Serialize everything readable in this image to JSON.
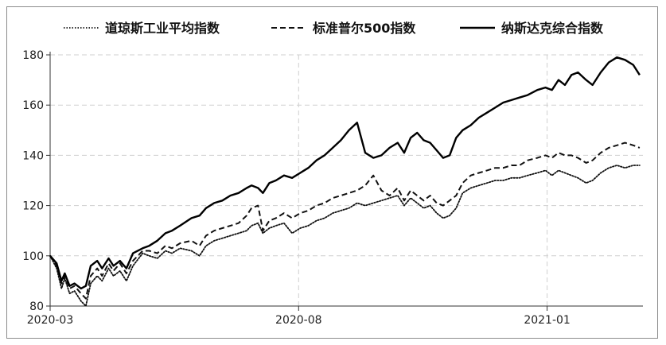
{
  "chart_data": {
    "type": "line",
    "title": "",
    "xlabel": "",
    "ylabel": "",
    "ylim": [
      80,
      180
    ],
    "yticks": [
      80,
      100,
      120,
      140,
      160,
      180
    ],
    "xlim": [
      "2020-03-01",
      "2021-03-01"
    ],
    "xticks": [
      {
        "date": "2020-03-01",
        "label": "2020-03"
      },
      {
        "date": "2020-08-01",
        "label": "2020-08"
      },
      {
        "date": "2021-01-01",
        "label": "2021-01"
      }
    ],
    "grid": true,
    "legend_position": "top",
    "series": [
      {
        "name": "道琼斯工业平均指数",
        "style": "dotted",
        "color": "#111111",
        "points": [
          [
            "2020-03-01",
            100
          ],
          [
            "2020-03-05",
            95
          ],
          [
            "2020-03-08",
            87
          ],
          [
            "2020-03-10",
            91
          ],
          [
            "2020-03-13",
            85
          ],
          [
            "2020-03-16",
            86
          ],
          [
            "2020-03-20",
            82
          ],
          [
            "2020-03-23",
            80
          ],
          [
            "2020-03-26",
            89
          ],
          [
            "2020-03-30",
            92
          ],
          [
            "2020-04-02",
            90
          ],
          [
            "2020-04-06",
            95
          ],
          [
            "2020-04-09",
            92
          ],
          [
            "2020-04-13",
            94
          ],
          [
            "2020-04-17",
            90
          ],
          [
            "2020-04-21",
            96
          ],
          [
            "2020-04-27",
            101
          ],
          [
            "2020-05-01",
            100
          ],
          [
            "2020-05-06",
            99
          ],
          [
            "2020-05-11",
            102
          ],
          [
            "2020-05-15",
            101
          ],
          [
            "2020-05-20",
            103
          ],
          [
            "2020-05-27",
            102
          ],
          [
            "2020-06-01",
            100
          ],
          [
            "2020-06-05",
            104
          ],
          [
            "2020-06-10",
            106
          ],
          [
            "2020-06-15",
            107
          ],
          [
            "2020-06-20",
            108
          ],
          [
            "2020-06-25",
            109
          ],
          [
            "2020-06-30",
            110
          ],
          [
            "2020-07-03",
            112
          ],
          [
            "2020-07-07",
            113
          ],
          [
            "2020-07-10",
            109
          ],
          [
            "2020-07-14",
            111
          ],
          [
            "2020-07-18",
            112
          ],
          [
            "2020-07-23",
            113
          ],
          [
            "2020-07-28",
            109
          ],
          [
            "2020-08-02",
            111
          ],
          [
            "2020-08-07",
            112
          ],
          [
            "2020-08-12",
            114
          ],
          [
            "2020-08-17",
            115
          ],
          [
            "2020-08-22",
            117
          ],
          [
            "2020-08-27",
            118
          ],
          [
            "2020-09-01",
            119
          ],
          [
            "2020-09-06",
            121
          ],
          [
            "2020-09-11",
            120
          ],
          [
            "2020-09-16",
            121
          ],
          [
            "2020-09-21",
            122
          ],
          [
            "2020-09-26",
            123
          ],
          [
            "2020-10-01",
            124
          ],
          [
            "2020-10-05",
            120
          ],
          [
            "2020-10-09",
            123
          ],
          [
            "2020-10-13",
            121
          ],
          [
            "2020-10-17",
            119
          ],
          [
            "2020-10-21",
            120
          ],
          [
            "2020-10-25",
            117
          ],
          [
            "2020-10-29",
            115
          ],
          [
            "2020-11-02",
            116
          ],
          [
            "2020-11-06",
            119
          ],
          [
            "2020-11-10",
            125
          ],
          [
            "2020-11-15",
            127
          ],
          [
            "2020-11-20",
            128
          ],
          [
            "2020-11-25",
            129
          ],
          [
            "2020-11-30",
            130
          ],
          [
            "2020-12-05",
            130
          ],
          [
            "2020-12-10",
            131
          ],
          [
            "2020-12-15",
            131
          ],
          [
            "2020-12-20",
            132
          ],
          [
            "2020-12-26",
            133
          ],
          [
            "2020-12-31",
            134
          ],
          [
            "2021-01-04",
            132
          ],
          [
            "2021-01-08",
            134
          ],
          [
            "2021-01-12",
            133
          ],
          [
            "2021-01-16",
            132
          ],
          [
            "2021-01-20",
            131
          ],
          [
            "2021-01-25",
            129
          ],
          [
            "2021-01-29",
            130
          ],
          [
            "2021-02-03",
            133
          ],
          [
            "2021-02-08",
            135
          ],
          [
            "2021-02-13",
            136
          ],
          [
            "2021-02-18",
            135
          ],
          [
            "2021-02-23",
            136
          ],
          [
            "2021-02-27",
            136
          ]
        ]
      },
      {
        "name": "标准普尔500指数",
        "style": "dashed",
        "color": "#111111",
        "points": [
          [
            "2020-03-01",
            100
          ],
          [
            "2020-03-05",
            96
          ],
          [
            "2020-03-08",
            89
          ],
          [
            "2020-03-10",
            92
          ],
          [
            "2020-03-13",
            87
          ],
          [
            "2020-03-16",
            88
          ],
          [
            "2020-03-20",
            85
          ],
          [
            "2020-03-23",
            83
          ],
          [
            "2020-03-26",
            92
          ],
          [
            "2020-03-30",
            95
          ],
          [
            "2020-04-02",
            92
          ],
          [
            "2020-04-06",
            97
          ],
          [
            "2020-04-09",
            94
          ],
          [
            "2020-04-13",
            97
          ],
          [
            "2020-04-17",
            93
          ],
          [
            "2020-04-21",
            98
          ],
          [
            "2020-04-27",
            102
          ],
          [
            "2020-05-01",
            102
          ],
          [
            "2020-05-06",
            101
          ],
          [
            "2020-05-11",
            104
          ],
          [
            "2020-05-15",
            103
          ],
          [
            "2020-05-20",
            105
          ],
          [
            "2020-05-27",
            106
          ],
          [
            "2020-06-01",
            104
          ],
          [
            "2020-06-05",
            108
          ],
          [
            "2020-06-10",
            110
          ],
          [
            "2020-06-15",
            111
          ],
          [
            "2020-06-20",
            112
          ],
          [
            "2020-06-25",
            113
          ],
          [
            "2020-06-30",
            116
          ],
          [
            "2020-07-03",
            119
          ],
          [
            "2020-07-07",
            120
          ],
          [
            "2020-07-10",
            110
          ],
          [
            "2020-07-14",
            114
          ],
          [
            "2020-07-18",
            115
          ],
          [
            "2020-07-23",
            117
          ],
          [
            "2020-07-28",
            115
          ],
          [
            "2020-08-02",
            117
          ],
          [
            "2020-08-07",
            118
          ],
          [
            "2020-08-12",
            120
          ],
          [
            "2020-08-17",
            121
          ],
          [
            "2020-08-22",
            123
          ],
          [
            "2020-08-27",
            124
          ],
          [
            "2020-09-01",
            125
          ],
          [
            "2020-09-06",
            126
          ],
          [
            "2020-09-11",
            128
          ],
          [
            "2020-09-16",
            132
          ],
          [
            "2020-09-21",
            126
          ],
          [
            "2020-09-26",
            124
          ],
          [
            "2020-10-01",
            127
          ],
          [
            "2020-10-05",
            122
          ],
          [
            "2020-10-09",
            126
          ],
          [
            "2020-10-13",
            124
          ],
          [
            "2020-10-17",
            122
          ],
          [
            "2020-10-21",
            124
          ],
          [
            "2020-10-25",
            121
          ],
          [
            "2020-10-29",
            120
          ],
          [
            "2020-11-02",
            122
          ],
          [
            "2020-11-06",
            124
          ],
          [
            "2020-11-10",
            129
          ],
          [
            "2020-11-15",
            132
          ],
          [
            "2020-11-20",
            133
          ],
          [
            "2020-11-25",
            134
          ],
          [
            "2020-11-30",
            135
          ],
          [
            "2020-12-05",
            135
          ],
          [
            "2020-12-10",
            136
          ],
          [
            "2020-12-15",
            136
          ],
          [
            "2020-12-20",
            138
          ],
          [
            "2020-12-26",
            139
          ],
          [
            "2020-12-31",
            140
          ],
          [
            "2021-01-04",
            139
          ],
          [
            "2021-01-08",
            141
          ],
          [
            "2021-01-12",
            140
          ],
          [
            "2021-01-16",
            140
          ],
          [
            "2021-01-20",
            139
          ],
          [
            "2021-01-25",
            137
          ],
          [
            "2021-01-29",
            138
          ],
          [
            "2021-02-03",
            141
          ],
          [
            "2021-02-08",
            143
          ],
          [
            "2021-02-13",
            144
          ],
          [
            "2021-02-18",
            145
          ],
          [
            "2021-02-23",
            144
          ],
          [
            "2021-02-27",
            143
          ]
        ]
      },
      {
        "name": "纳斯达克综合指数",
        "style": "solid",
        "color": "#000000",
        "points": [
          [
            "2020-03-01",
            100
          ],
          [
            "2020-03-05",
            97
          ],
          [
            "2020-03-08",
            90
          ],
          [
            "2020-03-10",
            93
          ],
          [
            "2020-03-13",
            88
          ],
          [
            "2020-03-16",
            89
          ],
          [
            "2020-03-20",
            87
          ],
          [
            "2020-03-23",
            88
          ],
          [
            "2020-03-26",
            96
          ],
          [
            "2020-03-30",
            98
          ],
          [
            "2020-04-02",
            95
          ],
          [
            "2020-04-06",
            99
          ],
          [
            "2020-04-09",
            96
          ],
          [
            "2020-04-13",
            98
          ],
          [
            "2020-04-17",
            95
          ],
          [
            "2020-04-21",
            101
          ],
          [
            "2020-04-27",
            103
          ],
          [
            "2020-05-01",
            104
          ],
          [
            "2020-05-06",
            106
          ],
          [
            "2020-05-11",
            109
          ],
          [
            "2020-05-15",
            110
          ],
          [
            "2020-05-20",
            112
          ],
          [
            "2020-05-27",
            115
          ],
          [
            "2020-06-01",
            116
          ],
          [
            "2020-06-05",
            119
          ],
          [
            "2020-06-10",
            121
          ],
          [
            "2020-06-15",
            122
          ],
          [
            "2020-06-20",
            124
          ],
          [
            "2020-06-25",
            125
          ],
          [
            "2020-06-30",
            127
          ],
          [
            "2020-07-03",
            128
          ],
          [
            "2020-07-07",
            127
          ],
          [
            "2020-07-10",
            125
          ],
          [
            "2020-07-14",
            129
          ],
          [
            "2020-07-18",
            130
          ],
          [
            "2020-07-23",
            132
          ],
          [
            "2020-07-28",
            131
          ],
          [
            "2020-08-02",
            133
          ],
          [
            "2020-08-07",
            135
          ],
          [
            "2020-08-12",
            138
          ],
          [
            "2020-08-17",
            140
          ],
          [
            "2020-08-22",
            143
          ],
          [
            "2020-08-27",
            146
          ],
          [
            "2020-09-01",
            150
          ],
          [
            "2020-09-06",
            153
          ],
          [
            "2020-09-11",
            141
          ],
          [
            "2020-09-16",
            139
          ],
          [
            "2020-09-21",
            140
          ],
          [
            "2020-09-26",
            143
          ],
          [
            "2020-10-01",
            145
          ],
          [
            "2020-10-05",
            141
          ],
          [
            "2020-10-09",
            147
          ],
          [
            "2020-10-13",
            149
          ],
          [
            "2020-10-17",
            146
          ],
          [
            "2020-10-21",
            145
          ],
          [
            "2020-10-25",
            142
          ],
          [
            "2020-10-29",
            139
          ],
          [
            "2020-11-02",
            140
          ],
          [
            "2020-11-06",
            147
          ],
          [
            "2020-11-10",
            150
          ],
          [
            "2020-11-15",
            152
          ],
          [
            "2020-11-20",
            155
          ],
          [
            "2020-11-25",
            157
          ],
          [
            "2020-11-30",
            159
          ],
          [
            "2020-12-05",
            161
          ],
          [
            "2020-12-10",
            162
          ],
          [
            "2020-12-15",
            163
          ],
          [
            "2020-12-20",
            164
          ],
          [
            "2020-12-26",
            166
          ],
          [
            "2020-12-31",
            167
          ],
          [
            "2021-01-04",
            166
          ],
          [
            "2021-01-08",
            170
          ],
          [
            "2021-01-12",
            168
          ],
          [
            "2021-01-16",
            172
          ],
          [
            "2021-01-20",
            173
          ],
          [
            "2021-01-25",
            170
          ],
          [
            "2021-01-29",
            168
          ],
          [
            "2021-02-03",
            173
          ],
          [
            "2021-02-08",
            177
          ],
          [
            "2021-02-13",
            179
          ],
          [
            "2021-02-18",
            178
          ],
          [
            "2021-02-23",
            176
          ],
          [
            "2021-02-27",
            172
          ]
        ]
      }
    ]
  }
}
